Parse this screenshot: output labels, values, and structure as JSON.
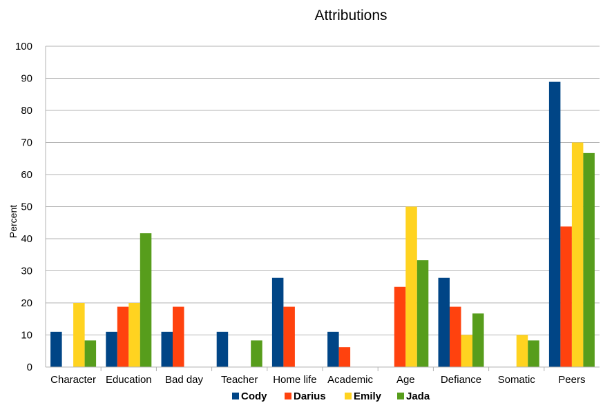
{
  "chart_data": {
    "type": "bar",
    "title": "Attributions",
    "xlabel": "",
    "ylabel": "Percent",
    "ylim": [
      0,
      100
    ],
    "yticks": [
      0,
      10,
      20,
      30,
      40,
      50,
      60,
      70,
      80,
      90,
      100
    ],
    "grid": true,
    "legend_position": "bottom",
    "categories": [
      "Character",
      "Education",
      "Bad day",
      "Teacher",
      "Home life",
      "Academic",
      "Age",
      "Defiance",
      "Somatic",
      "Peers"
    ],
    "series": [
      {
        "name": "Cody",
        "color": "#004586",
        "values": [
          11,
          11,
          11,
          11,
          27.8,
          11,
          0,
          27.8,
          0,
          88.9
        ]
      },
      {
        "name": "Darius",
        "color": "#ff420e",
        "values": [
          0,
          18.8,
          18.8,
          0,
          18.8,
          6.2,
          25,
          18.8,
          0,
          43.8
        ]
      },
      {
        "name": "Emily",
        "color": "#ffd320",
        "values": [
          20,
          20,
          0,
          0,
          0,
          0,
          50,
          10,
          10,
          70
        ]
      },
      {
        "name": "Jada",
        "color": "#579d1c",
        "values": [
          8.3,
          41.7,
          0,
          8.3,
          0,
          0,
          33.3,
          16.7,
          8.3,
          66.7
        ]
      }
    ]
  }
}
